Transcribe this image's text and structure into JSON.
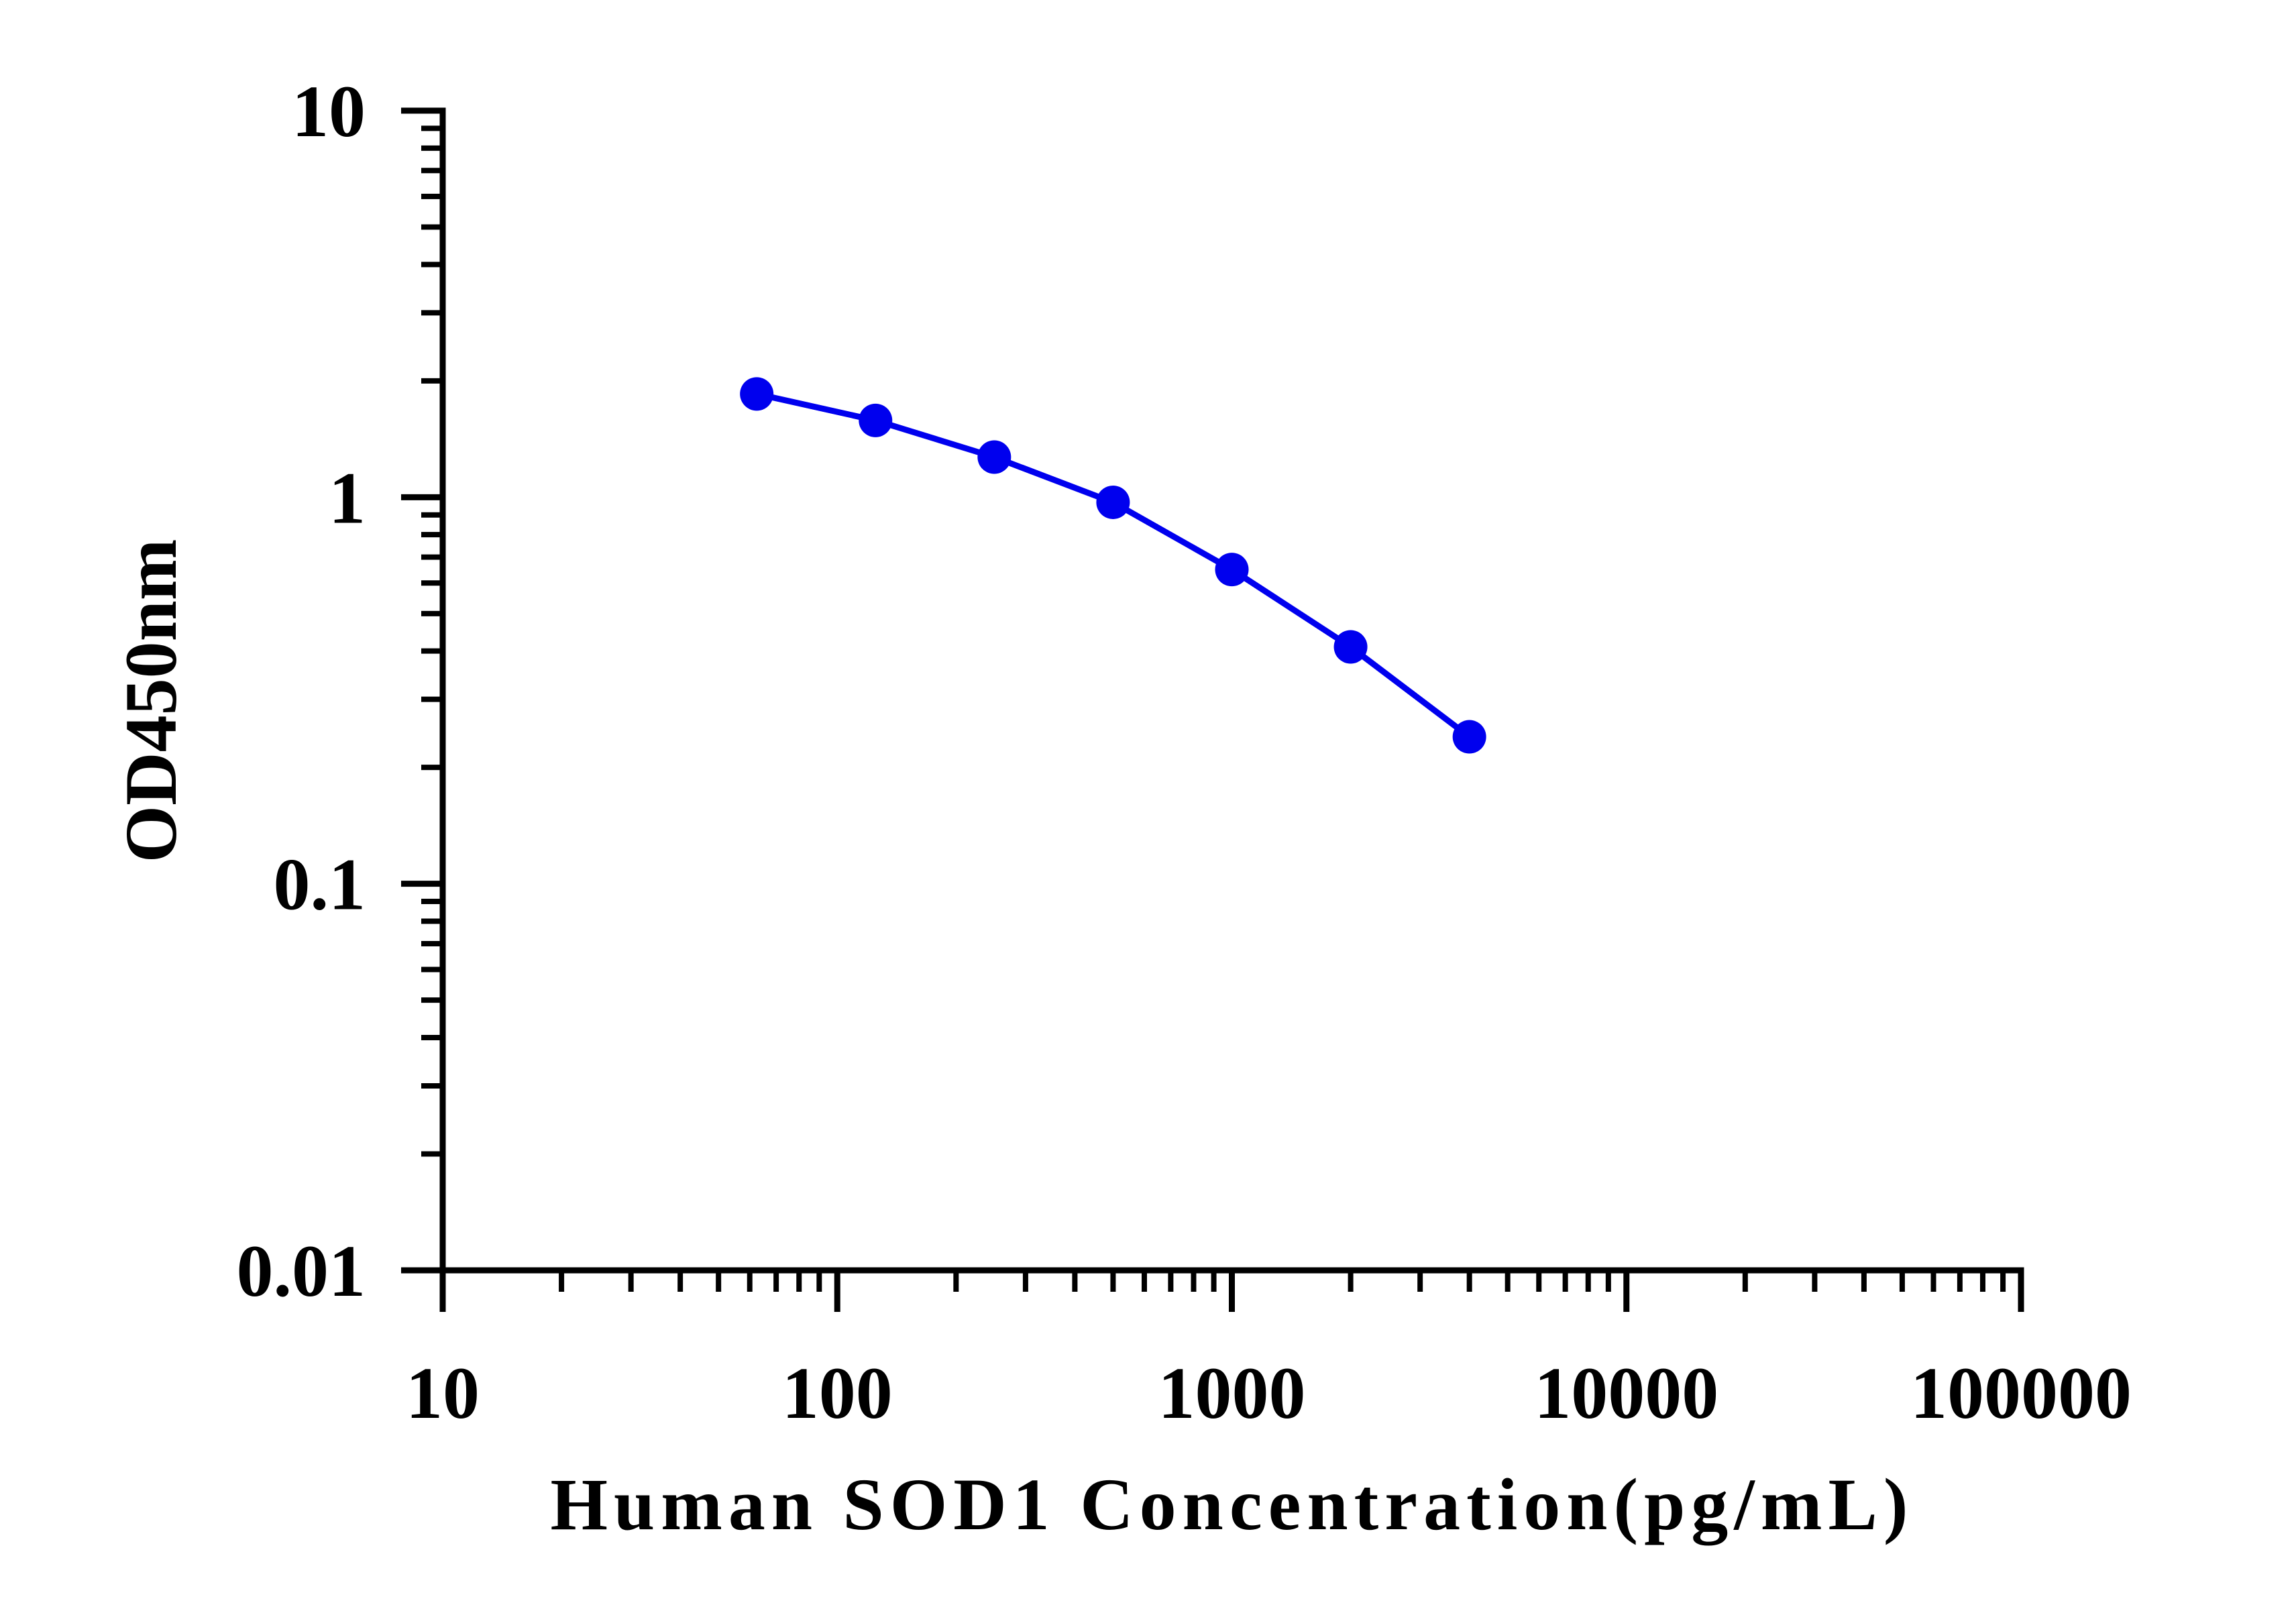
{
  "chart_data": {
    "type": "line",
    "xlabel": "Human SOD1 Concentration(pg/mL)",
    "ylabel": "OD450nm",
    "x_scale": "log",
    "y_scale": "log",
    "xlim": [
      10,
      100000
    ],
    "ylim": [
      0.01,
      10
    ],
    "x_tick_labels": [
      "10",
      "100",
      "1000",
      "10000",
      "100000"
    ],
    "y_tick_labels": [
      "0.01",
      "0.1",
      "1",
      "10"
    ],
    "grid": false,
    "series": [
      {
        "color": "#0000ee",
        "x": [
          62.5,
          125,
          250,
          500,
          1000,
          2000,
          4000
        ],
        "y": [
          1.85,
          1.58,
          1.27,
          0.97,
          0.65,
          0.41,
          0.24
        ]
      }
    ]
  }
}
